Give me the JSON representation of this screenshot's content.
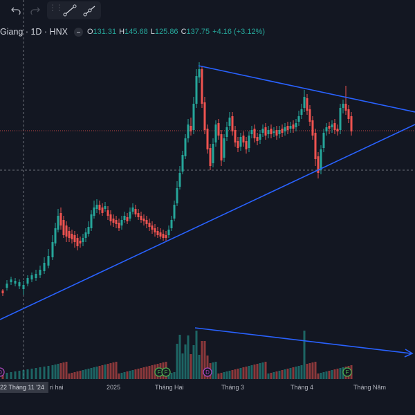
{
  "toolbar": {
    "undo_icon": "undo-icon",
    "redo_icon": "redo-icon",
    "trend_line_icon": "trend-line-icon",
    "ray_icon": "ray-icon"
  },
  "legend": {
    "symbol": "Giang · 1D · HNX",
    "open_label": "O",
    "open": "131.31",
    "high_label": "H",
    "high": "145.68",
    "low_label": "L",
    "low": "125.86",
    "close_label": "C",
    "close": "137.75",
    "change": "+4.16 (+3.12%)"
  },
  "xaxis": {
    "crosshair_label": "22 Tháng 11 '24",
    "labels": [
      "ri hai",
      "2025",
      "Tháng Hai",
      "Tháng 3",
      "Tháng 4",
      "Tháng Năm"
    ]
  },
  "events": [
    "D",
    "F",
    "F",
    "D",
    "F"
  ],
  "colors": {
    "up": "#26a69a",
    "down": "#ef5350",
    "trend": "#2962ff",
    "bg": "#131722"
  }
}
